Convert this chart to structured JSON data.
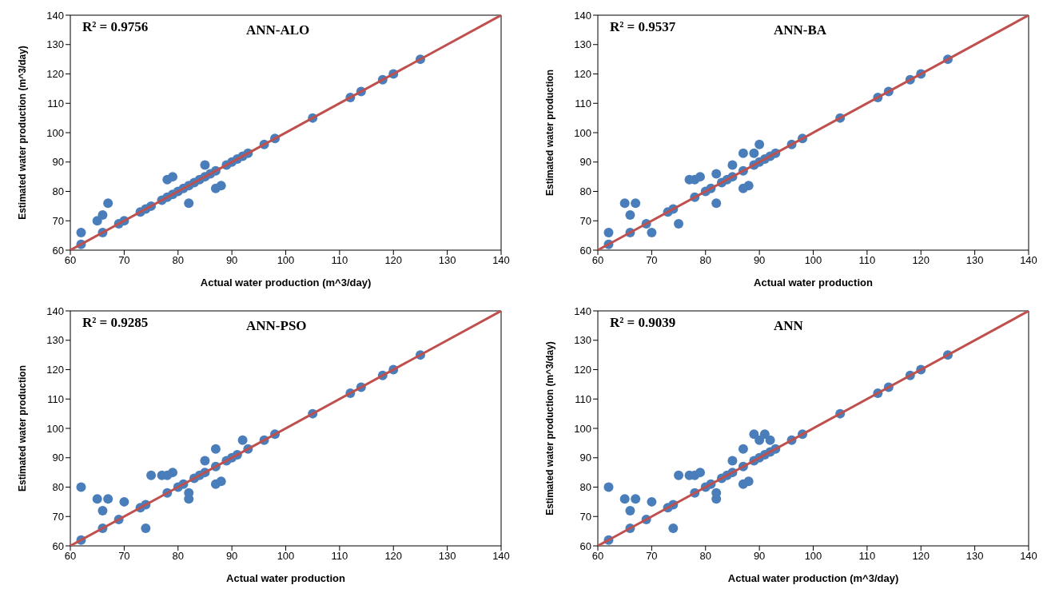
{
  "chart_data": [
    {
      "type": "scatter",
      "title": "ANN-ALO",
      "xlabel": "Actual water production (m^3/day)",
      "ylabel": "Estimated water production (m^3/day)",
      "annotations": [
        "R² = 0.9756"
      ],
      "xlim": [
        60,
        140
      ],
      "ylim": [
        60,
        140
      ],
      "xticks": [
        60,
        70,
        80,
        90,
        100,
        110,
        120,
        130,
        140
      ],
      "yticks": [
        60,
        70,
        80,
        90,
        100,
        110,
        120,
        130,
        140
      ],
      "grid": false,
      "legend": false,
      "series": [
        {
          "type": "scatter",
          "marker": "circle",
          "color": "#4a7ebb",
          "x": [
            62,
            62,
            65,
            66,
            66,
            67,
            69,
            70,
            73,
            74,
            75,
            77,
            78,
            78,
            79,
            79,
            80,
            81,
            82,
            82,
            83,
            84,
            85,
            85,
            86,
            87,
            87,
            88,
            89,
            90,
            91,
            92,
            93,
            96,
            98,
            105,
            112,
            114,
            118,
            120,
            125
          ],
          "values": [
            62,
            66,
            70,
            72,
            66,
            76,
            69,
            70,
            73,
            74,
            75,
            77,
            78,
            84,
            85,
            79,
            80,
            81,
            76,
            82,
            83,
            84,
            85,
            89,
            86,
            87,
            81,
            82,
            89,
            90,
            91,
            92,
            93,
            96,
            98,
            105,
            112,
            114,
            118,
            120,
            125
          ]
        },
        {
          "type": "line",
          "marker": "none",
          "color": "#c0504d",
          "x": [
            60,
            140
          ],
          "values": [
            60,
            140
          ]
        }
      ]
    },
    {
      "type": "scatter",
      "title": "ANN-BA",
      "xlabel": "Actual water production",
      "ylabel": "Estimated water production",
      "annotations": [
        "R² = 0.9537"
      ],
      "xlim": [
        60,
        140
      ],
      "ylim": [
        60,
        140
      ],
      "xticks": [
        60,
        70,
        80,
        90,
        100,
        110,
        120,
        130,
        140
      ],
      "yticks": [
        60,
        70,
        80,
        90,
        100,
        110,
        120,
        130,
        140
      ],
      "grid": false,
      "legend": false,
      "series": [
        {
          "type": "scatter",
          "marker": "circle",
          "color": "#4a7ebb",
          "x": [
            62,
            62,
            65,
            66,
            66,
            67,
            69,
            70,
            73,
            74,
            75,
            77,
            78,
            78,
            79,
            80,
            81,
            82,
            82,
            83,
            84,
            85,
            85,
            87,
            87,
            88,
            87,
            89,
            89,
            90,
            90,
            91,
            92,
            93,
            96,
            98,
            105,
            112,
            114,
            118,
            120,
            125
          ],
          "values": [
            62,
            66,
            76,
            72,
            66,
            76,
            69,
            66,
            73,
            74,
            69,
            84,
            84,
            78,
            85,
            80,
            81,
            86,
            76,
            83,
            84,
            85,
            89,
            87,
            81,
            82,
            93,
            93,
            89,
            96,
            90,
            91,
            92,
            93,
            96,
            98,
            105,
            112,
            114,
            118,
            120,
            125
          ]
        },
        {
          "type": "line",
          "marker": "none",
          "color": "#c0504d",
          "x": [
            60,
            140
          ],
          "values": [
            60,
            140
          ]
        }
      ]
    },
    {
      "type": "scatter",
      "title": "ANN-PSO",
      "xlabel": "Actual water production",
      "ylabel": "Estimated water production",
      "annotations": [
        "R² = 0.9285"
      ],
      "xlim": [
        60,
        140
      ],
      "ylim": [
        60,
        140
      ],
      "xticks": [
        60,
        70,
        80,
        90,
        100,
        110,
        120,
        130,
        140
      ],
      "yticks": [
        60,
        70,
        80,
        90,
        100,
        110,
        120,
        130,
        140
      ],
      "grid": false,
      "legend": false,
      "series": [
        {
          "type": "scatter",
          "marker": "circle",
          "color": "#4a7ebb",
          "x": [
            62,
            62,
            65,
            66,
            66,
            67,
            69,
            70,
            73,
            74,
            74,
            75,
            77,
            78,
            78,
            79,
            80,
            81,
            82,
            82,
            83,
            84,
            85,
            85,
            87,
            87,
            88,
            87,
            89,
            90,
            91,
            92,
            93,
            96,
            98,
            105,
            112,
            114,
            118,
            120,
            125
          ],
          "values": [
            62,
            80,
            76,
            72,
            66,
            76,
            69,
            75,
            73,
            74,
            66,
            84,
            84,
            84,
            78,
            85,
            80,
            81,
            78,
            76,
            83,
            84,
            85,
            89,
            87,
            81,
            82,
            93,
            89,
            90,
            91,
            96,
            93,
            96,
            98,
            105,
            112,
            114,
            118,
            120,
            125
          ]
        },
        {
          "type": "line",
          "marker": "none",
          "color": "#c0504d",
          "x": [
            60,
            140
          ],
          "values": [
            60,
            140
          ]
        }
      ]
    },
    {
      "type": "scatter",
      "title": "ANN",
      "xlabel": "Actual water production (m^3/day)",
      "ylabel": "Estimated water production (m^3/day)",
      "annotations": [
        "R² = 0.9039"
      ],
      "xlim": [
        60,
        140
      ],
      "ylim": [
        60,
        140
      ],
      "xticks": [
        60,
        70,
        80,
        90,
        100,
        110,
        120,
        130,
        140
      ],
      "yticks": [
        60,
        70,
        80,
        90,
        100,
        110,
        120,
        130,
        140
      ],
      "grid": false,
      "legend": false,
      "series": [
        {
          "type": "scatter",
          "marker": "circle",
          "color": "#4a7ebb",
          "x": [
            62,
            62,
            65,
            66,
            66,
            67,
            69,
            70,
            73,
            74,
            74,
            75,
            77,
            78,
            78,
            79,
            80,
            81,
            82,
            82,
            83,
            84,
            85,
            85,
            87,
            87,
            88,
            87,
            89,
            89,
            90,
            90,
            91,
            91,
            92,
            92,
            93,
            96,
            98,
            105,
            112,
            114,
            118,
            120,
            125
          ],
          "values": [
            62,
            80,
            76,
            72,
            66,
            76,
            69,
            75,
            73,
            74,
            66,
            84,
            84,
            84,
            78,
            85,
            80,
            81,
            78,
            76,
            83,
            84,
            85,
            89,
            87,
            81,
            82,
            93,
            89,
            98,
            90,
            96,
            91,
            98,
            92,
            96,
            93,
            96,
            98,
            105,
            112,
            114,
            118,
            120,
            125
          ]
        },
        {
          "type": "line",
          "marker": "none",
          "color": "#c0504d",
          "x": [
            60,
            140
          ],
          "values": [
            60,
            140
          ]
        }
      ]
    }
  ]
}
